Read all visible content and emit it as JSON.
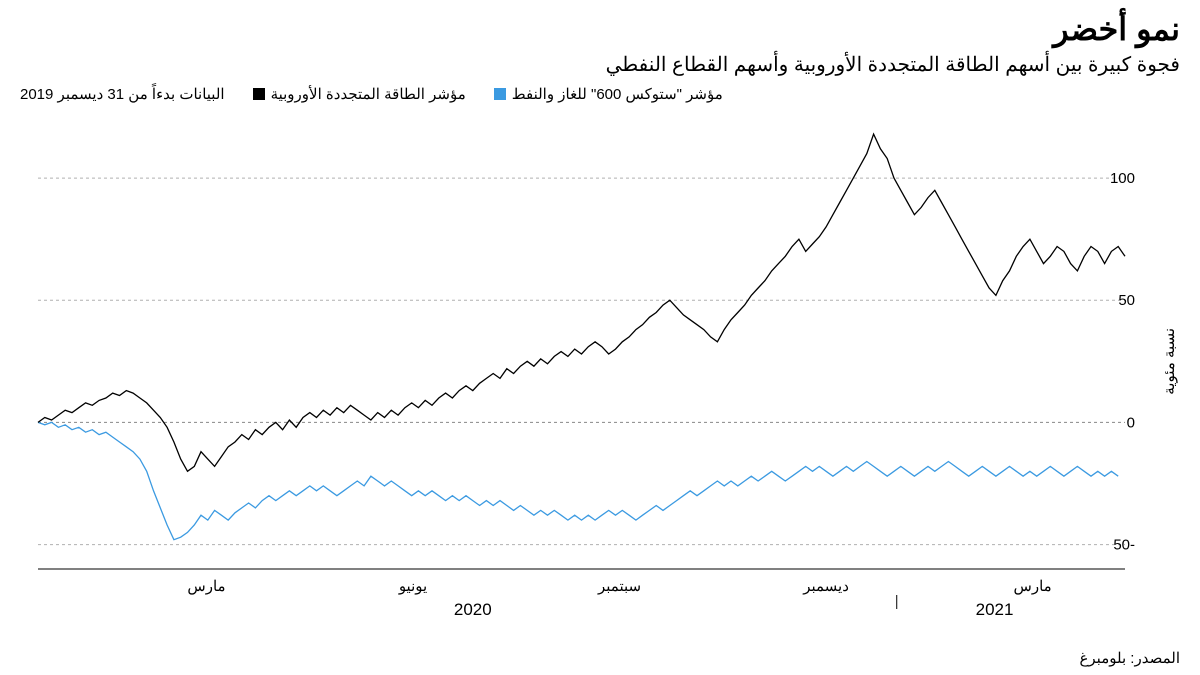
{
  "title": "نمو أخضر",
  "subtitle": "فجوة كبيرة بين أسهم الطاقة المتجددة الأوروبية وأسهم القطاع النفطي",
  "data_note": "البيانات بدءاً من 31 ديسمبر 2019",
  "legend": {
    "series1": {
      "label": "مؤشر الطاقة المتجددة الأوروبية",
      "color": "#000000"
    },
    "series2": {
      "label": "مؤشر \"ستوكس 600\" للغاز والنفط",
      "color": "#3b9ae1"
    }
  },
  "y_axis": {
    "label": "نسبة مئوية",
    "min": -60,
    "max": 125,
    "ticks": [
      -50,
      0,
      50,
      100
    ]
  },
  "x_axis": {
    "month_labels": [
      {
        "pos": 0.155,
        "text": "مارس"
      },
      {
        "pos": 0.345,
        "text": "يونيو"
      },
      {
        "pos": 0.535,
        "text": "سبتمبر"
      },
      {
        "pos": 0.725,
        "text": "ديسمبر"
      },
      {
        "pos": 0.915,
        "text": "مارس"
      }
    ],
    "year_labels": [
      {
        "pos": 0.4,
        "text": "2020"
      },
      {
        "pos": 0.88,
        "text": "2021"
      }
    ],
    "year_divider": 0.79
  },
  "chart": {
    "type": "line",
    "background_color": "#ffffff",
    "grid_color": "#b0b0b0",
    "line_width": 1.3,
    "series1": {
      "color": "#000000",
      "data": [
        0,
        2,
        1,
        3,
        5,
        4,
        6,
        8,
        7,
        9,
        10,
        12,
        11,
        13,
        12,
        10,
        8,
        5,
        2,
        -2,
        -8,
        -15,
        -20,
        -18,
        -12,
        -15,
        -18,
        -14,
        -10,
        -8,
        -5,
        -7,
        -3,
        -5,
        -2,
        0,
        -3,
        1,
        -2,
        2,
        4,
        2,
        5,
        3,
        6,
        4,
        7,
        5,
        3,
        1,
        4,
        2,
        5,
        3,
        6,
        8,
        6,
        9,
        7,
        10,
        12,
        10,
        13,
        15,
        13,
        16,
        18,
        20,
        18,
        22,
        20,
        23,
        25,
        23,
        26,
        24,
        27,
        29,
        27,
        30,
        28,
        31,
        33,
        31,
        28,
        30,
        33,
        35,
        38,
        40,
        43,
        45,
        48,
        50,
        47,
        44,
        42,
        40,
        38,
        35,
        33,
        38,
        42,
        45,
        48,
        52,
        55,
        58,
        62,
        65,
        68,
        72,
        75,
        70,
        73,
        76,
        80,
        85,
        90,
        95,
        100,
        105,
        110,
        118,
        112,
        108,
        100,
        95,
        90,
        85,
        88,
        92,
        95,
        90,
        85,
        80,
        75,
        70,
        65,
        60,
        55,
        52,
        58,
        62,
        68,
        72,
        75,
        70,
        65,
        68,
        72,
        70,
        65,
        62,
        68,
        72,
        70,
        65,
        70,
        72,
        68
      ]
    },
    "series2": {
      "color": "#3b9ae1",
      "data": [
        0,
        -1,
        0,
        -2,
        -1,
        -3,
        -2,
        -4,
        -3,
        -5,
        -4,
        -6,
        -8,
        -10,
        -12,
        -15,
        -20,
        -28,
        -35,
        -42,
        -48,
        -47,
        -45,
        -42,
        -38,
        -40,
        -36,
        -38,
        -40,
        -37,
        -35,
        -33,
        -35,
        -32,
        -30,
        -32,
        -30,
        -28,
        -30,
        -28,
        -26,
        -28,
        -26,
        -28,
        -30,
        -28,
        -26,
        -24,
        -26,
        -22,
        -24,
        -26,
        -24,
        -26,
        -28,
        -30,
        -28,
        -30,
        -28,
        -30,
        -32,
        -30,
        -32,
        -30,
        -32,
        -34,
        -32,
        -34,
        -32,
        -34,
        -36,
        -34,
        -36,
        -38,
        -36,
        -38,
        -36,
        -38,
        -40,
        -38,
        -40,
        -38,
        -40,
        -38,
        -36,
        -38,
        -36,
        -38,
        -40,
        -38,
        -36,
        -34,
        -36,
        -34,
        -32,
        -30,
        -28,
        -30,
        -28,
        -26,
        -24,
        -26,
        -24,
        -26,
        -24,
        -22,
        -24,
        -22,
        -20,
        -22,
        -24,
        -22,
        -20,
        -18,
        -20,
        -18,
        -20,
        -22,
        -20,
        -18,
        -20,
        -18,
        -16,
        -18,
        -20,
        -22,
        -20,
        -18,
        -20,
        -22,
        -20,
        -18,
        -20,
        -18,
        -16,
        -18,
        -20,
        -22,
        -20,
        -18,
        -20,
        -22,
        -20,
        -18,
        -20,
        -22,
        -20,
        -22,
        -20,
        -18,
        -20,
        -22,
        -20,
        -18,
        -20,
        -22,
        -20,
        -22,
        -20,
        -22
      ]
    }
  },
  "source": "المصدر: بلومبرغ"
}
